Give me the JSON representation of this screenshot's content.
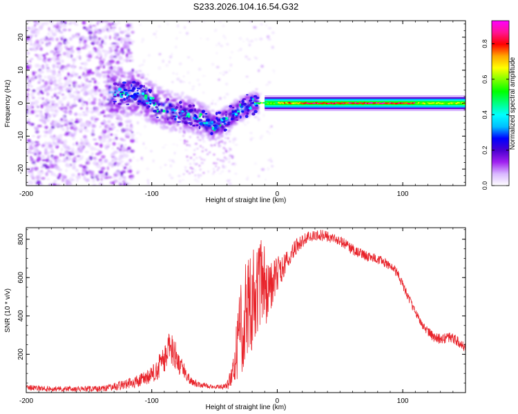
{
  "chart_data": [
    {
      "type": "heatmap",
      "title": "S233.2026.104.16.54.G32",
      "xlabel": "Height of straight line (km)",
      "ylabel": "Frequency (Hz)",
      "xlim": [
        -200,
        150
      ],
      "ylim": [
        -25,
        25
      ],
      "x_ticks": [
        -200,
        -100,
        0,
        100
      ],
      "x_tick_labels": [
        "-200",
        "-100",
        "0",
        "100"
      ],
      "y_ticks": [
        -20,
        -10,
        0,
        10,
        20
      ],
      "y_tick_labels": [
        "-20",
        "-10",
        "0",
        "10",
        "20"
      ],
      "colorbar": {
        "label": "Normalized spectral amplitude",
        "range": [
          0,
          0.93
        ],
        "ticks": [
          0.0,
          0.2,
          0.4,
          0.6,
          0.8
        ],
        "tick_labels": [
          "0.0",
          "0.2",
          "0.4",
          "0.6",
          "0.8"
        ],
        "colors": [
          "#ffffff",
          "#d9b8ff",
          "#a020f0",
          "#4b00d0",
          "#0000ff",
          "#00bfff",
          "#00ffff",
          "#00ff80",
          "#00ff00",
          "#80ff00",
          "#ffff00",
          "#ffa500",
          "#ff0000",
          "#ff1493",
          "#ff00ff"
        ]
      },
      "ridge": {
        "description_points": [
          {
            "x": -130,
            "y": 3
          },
          {
            "x": -110,
            "y": 3
          },
          {
            "x": -95,
            "y": -1
          },
          {
            "x": -80,
            "y": -3
          },
          {
            "x": -65,
            "y": -4
          },
          {
            "x": -50,
            "y": -7
          },
          {
            "x": -40,
            "y": -5
          },
          {
            "x": -30,
            "y": -2
          },
          {
            "x": -20,
            "y": 0
          },
          {
            "x": 0,
            "y": 0
          },
          {
            "x": 100,
            "y": 0
          },
          {
            "x": 150,
            "y": 0
          }
        ],
        "peak_region_x": [
          20,
          110
        ],
        "peak_amplitude": 0.9
      }
    },
    {
      "type": "line",
      "xlabel": "Height of straight line (km)",
      "ylabel": "SNR (10 * v/v)",
      "xlim": [
        -200,
        150
      ],
      "ylim": [
        0,
        860
      ],
      "x_ticks": [
        -200,
        -100,
        0,
        100
      ],
      "x_tick_labels": [
        "-200",
        "-100",
        "0",
        "100"
      ],
      "y_ticks": [
        200,
        400,
        600,
        800
      ],
      "y_tick_labels": [
        "200",
        "400",
        "600",
        "800"
      ],
      "color": "#e8232a",
      "series": [
        {
          "name": "SNR",
          "x": [
            -200,
            -180,
            -160,
            -140,
            -130,
            -120,
            -110,
            -100,
            -95,
            -90,
            -86,
            -82,
            -78,
            -74,
            -70,
            -65,
            -60,
            -55,
            -50,
            -45,
            -40,
            -35,
            -32,
            -29,
            -26,
            -23,
            -20,
            -17,
            -14,
            -11,
            -8,
            -5,
            -2,
            0,
            5,
            10,
            15,
            20,
            25,
            30,
            35,
            40,
            45,
            50,
            55,
            60,
            65,
            70,
            75,
            80,
            85,
            90,
            95,
            100,
            105,
            110,
            115,
            120,
            125,
            130,
            135,
            140,
            145,
            150
          ],
          "values": [
            25,
            20,
            18,
            20,
            30,
            45,
            60,
            90,
            130,
            170,
            230,
            210,
            150,
            110,
            70,
            50,
            40,
            35,
            30,
            30,
            35,
            100,
            250,
            330,
            420,
            480,
            500,
            520,
            560,
            580,
            520,
            560,
            600,
            620,
            650,
            720,
            760,
            790,
            810,
            815,
            820,
            815,
            800,
            790,
            770,
            745,
            730,
            715,
            705,
            695,
            680,
            660,
            630,
            560,
            490,
            420,
            360,
            320,
            285,
            280,
            285,
            285,
            260,
            230
          ],
          "noise": [
            15,
            15,
            15,
            15,
            20,
            30,
            35,
            45,
            60,
            80,
            90,
            80,
            60,
            40,
            25,
            20,
            15,
            12,
            10,
            10,
            20,
            80,
            180,
            240,
            280,
            300,
            280,
            260,
            250,
            220,
            160,
            130,
            110,
            90,
            70,
            50,
            40,
            35,
            30,
            30,
            30,
            30,
            30,
            28,
            28,
            28,
            28,
            28,
            26,
            26,
            26,
            26,
            26,
            24,
            22,
            22,
            22,
            24,
            26,
            28,
            28,
            28,
            26,
            24
          ]
        }
      ]
    }
  ]
}
